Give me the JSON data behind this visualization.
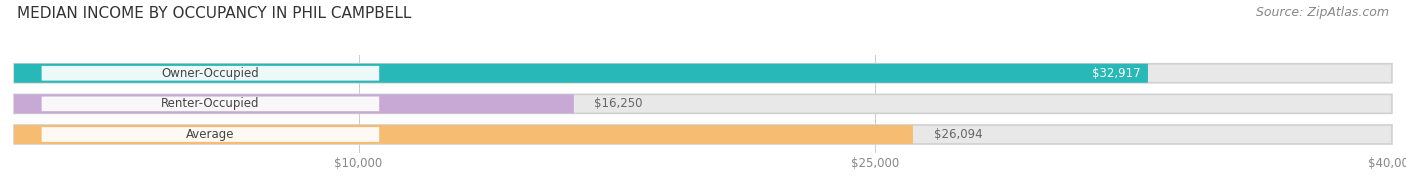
{
  "title": "MEDIAN INCOME BY OCCUPANCY IN PHIL CAMPBELL",
  "source": "Source: ZipAtlas.com",
  "categories": [
    "Owner-Occupied",
    "Renter-Occupied",
    "Average"
  ],
  "values": [
    32917,
    16250,
    26094
  ],
  "bar_colors": [
    "#29b8b8",
    "#c8a8d4",
    "#f5bc72"
  ],
  "bar_bg_color": "#e8e8e8",
  "xlim": [
    0,
    40000
  ],
  "xticks": [
    10000,
    25000,
    40000
  ],
  "xtick_labels": [
    "$10,000",
    "$25,000",
    "$40,000"
  ],
  "value_labels": [
    "$32,917",
    "$16,250",
    "$26,094"
  ],
  "title_fontsize": 11,
  "source_fontsize": 9,
  "label_fontsize": 8.5,
  "bar_height": 0.62,
  "background_color": "#ffffff"
}
